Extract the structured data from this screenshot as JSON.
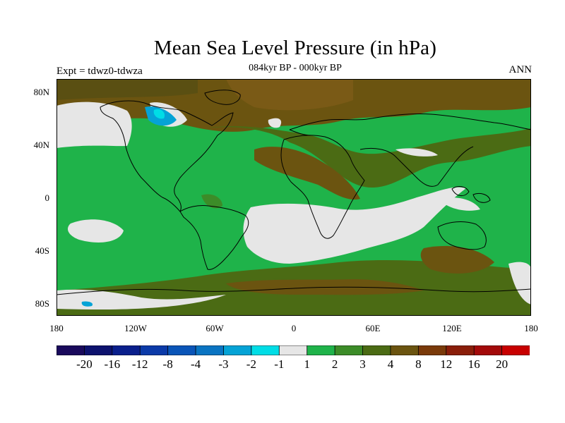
{
  "title": "Mean Sea Level Pressure (in hPa)",
  "subtitle": "084kyr BP - 000kyr BP",
  "experiment_label": "Expt = tdwz0-tdwza",
  "season_label": "ANN",
  "lat_labels": [
    "80N",
    "40N",
    "0",
    "40S",
    "80S"
  ],
  "lon_labels": [
    "180",
    "120W",
    "60W",
    "0",
    "60E",
    "120E",
    "180"
  ],
  "colorbar": {
    "colors": [
      "#1a0a5c",
      "#0d126e",
      "#0a1f8c",
      "#0b3aa8",
      "#0a55b8",
      "#0a74c2",
      "#05a3d6",
      "#00dde6",
      "#e6e6e6",
      "#1fb34a",
      "#3c8c28",
      "#4b6b14",
      "#6b5410",
      "#7a3a0a",
      "#8a1e0a",
      "#a30a0a",
      "#c80000"
    ],
    "labels": [
      "-20",
      "-16",
      "-12",
      "-8",
      "-4",
      "-3",
      "-2",
      "-1",
      "1",
      "2",
      "3",
      "4",
      "8",
      "12",
      "16",
      "20"
    ]
  },
  "map_colors": {
    "ocean_base": "#1fb34a",
    "neutral": "#e6e6e6",
    "low_pos": "#3c8c28",
    "mid_pos": "#4b6b14",
    "high_pos": "#6b5410",
    "negative": "#05a3d6",
    "strong_negative": "#00dde6"
  }
}
